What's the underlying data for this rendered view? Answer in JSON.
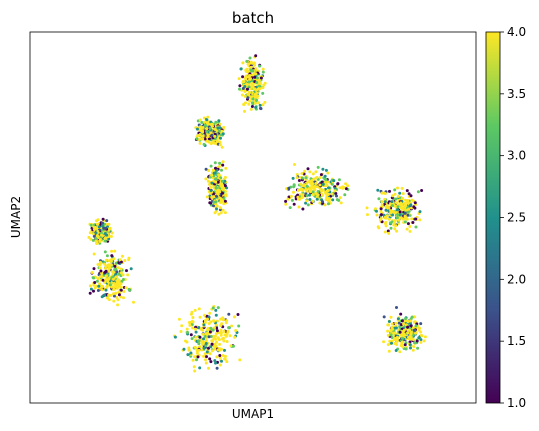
{
  "chart_data": {
    "type": "scatter",
    "title": "batch",
    "xlabel": "UMAP1",
    "ylabel": "UMAP2",
    "x_ticks": "none",
    "y_ticks": "none",
    "grid": false,
    "colorbar": {
      "placement": "right",
      "colormap": "viridis",
      "range": [
        1.0,
        4.0
      ],
      "ticks": [
        "1.0",
        "1.5",
        "2.0",
        "2.5",
        "3.0",
        "3.5",
        "4.0"
      ],
      "colors": [
        "#440154",
        "#3b528b",
        "#21918c",
        "#5ec962",
        "#fde725"
      ]
    },
    "clusters": [
      {
        "label": "top-center-spike",
        "cx": 0.5,
        "cy": 0.86,
        "rx": 0.035,
        "ry": 0.09
      },
      {
        "label": "upper-left-blob",
        "cx": 0.4,
        "cy": 0.73,
        "rx": 0.045,
        "ry": 0.05
      },
      {
        "label": "center-column",
        "cx": 0.42,
        "cy": 0.58,
        "rx": 0.03,
        "ry": 0.08
      },
      {
        "label": "center-right-large",
        "cx": 0.64,
        "cy": 0.58,
        "rx": 0.09,
        "ry": 0.07
      },
      {
        "label": "right-wing",
        "cx": 0.82,
        "cy": 0.52,
        "rx": 0.07,
        "ry": 0.08
      },
      {
        "label": "left-small",
        "cx": 0.16,
        "cy": 0.46,
        "rx": 0.03,
        "ry": 0.04
      },
      {
        "label": "left-round",
        "cx": 0.18,
        "cy": 0.34,
        "rx": 0.06,
        "ry": 0.09
      },
      {
        "label": "bottom-center",
        "cx": 0.4,
        "cy": 0.18,
        "rx": 0.08,
        "ry": 0.11
      },
      {
        "label": "bottom-right",
        "cx": 0.84,
        "cy": 0.19,
        "rx": 0.06,
        "ry": 0.07
      }
    ]
  }
}
